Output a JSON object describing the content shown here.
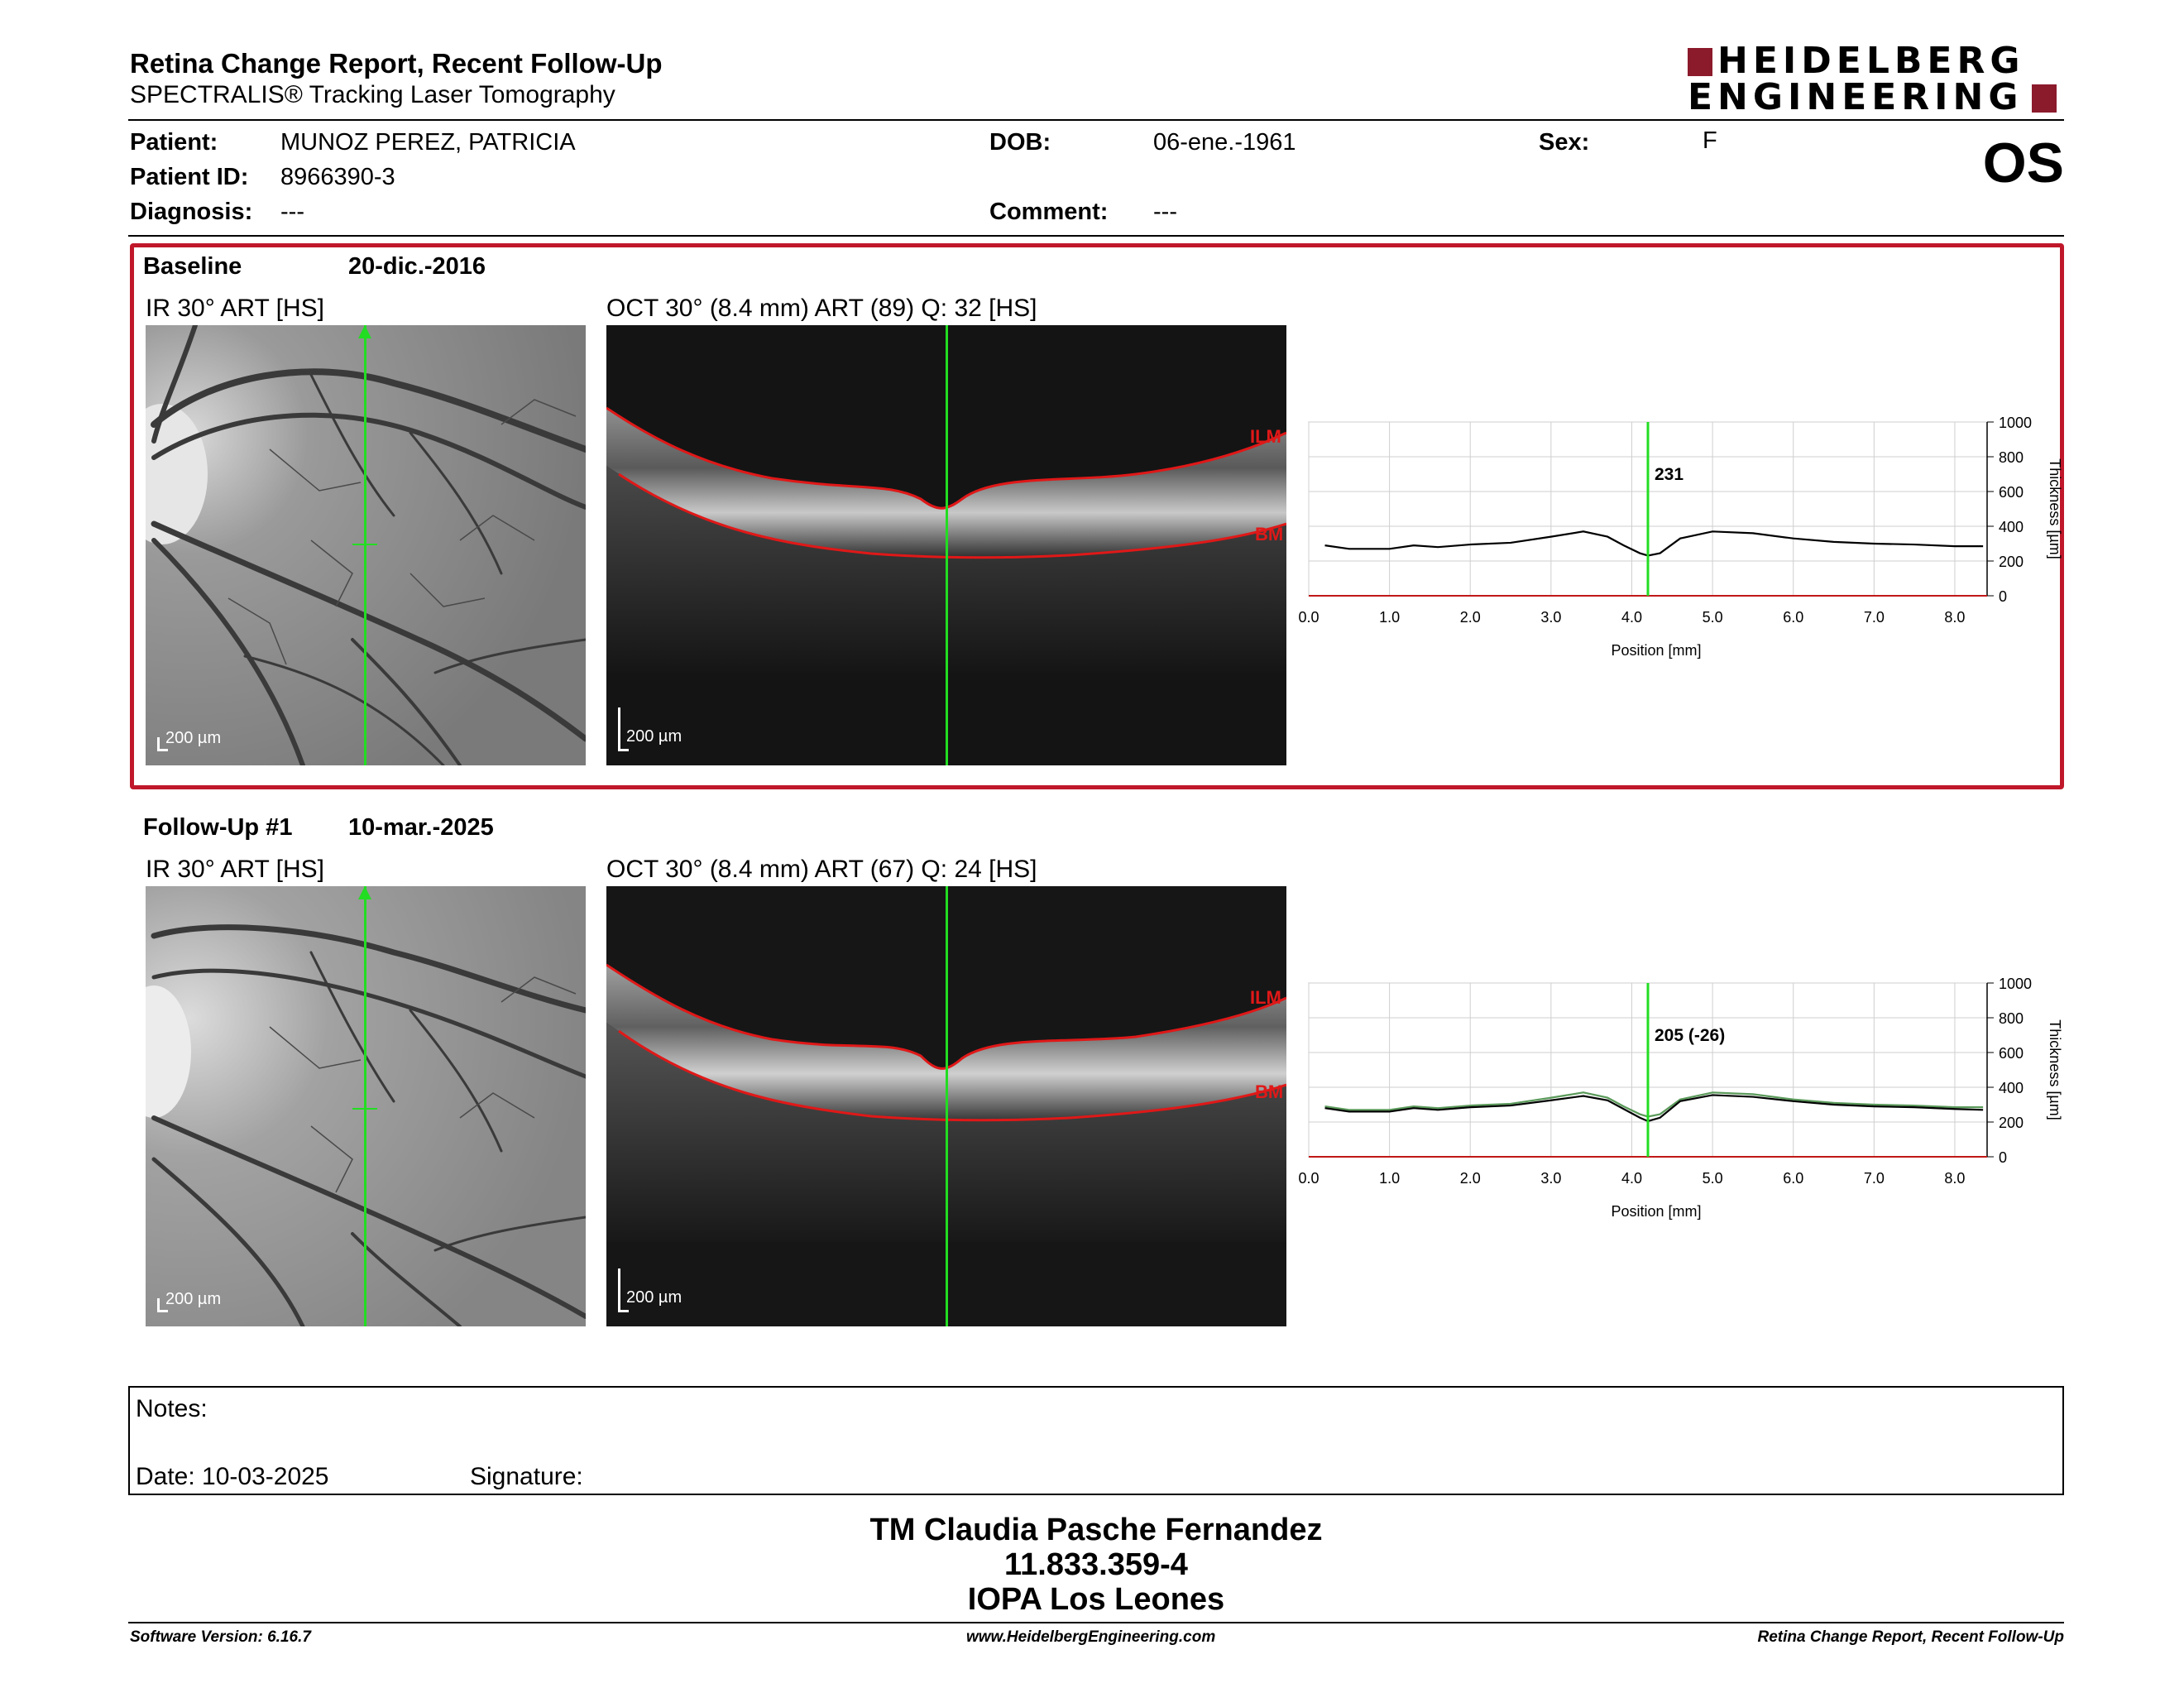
{
  "header": {
    "title": "Retina Change Report, Recent Follow-Up",
    "subtitle": "SPECTRALIS® Tracking Laser Tomography",
    "logo_line1": "HEIDELBERG",
    "logo_line2": "ENGINEERING",
    "eye": "OS"
  },
  "patient": {
    "patient_label": "Patient:",
    "patient_name": "MUNOZ PEREZ, PATRICIA",
    "id_label": "Patient ID:",
    "id_value": "8966390-3",
    "diagnosis_label": "Diagnosis:",
    "diagnosis_value": "---",
    "dob_label": "DOB:",
    "dob_value": "06-ene.-1961",
    "comment_label": "Comment:",
    "comment_value": "---",
    "sex_label": "Sex:",
    "sex_value": "F"
  },
  "baseline": {
    "label": "Baseline",
    "date": "20-dic.-2016",
    "ir_caption": "IR 30° ART [HS]",
    "oct_caption": "OCT 30° (8.4 mm) ART (89) Q: 32 [HS]",
    "scale_ir": "200 µm",
    "scale_oct": "200 µm",
    "ilm_label": "ILM",
    "bm_label": "BM",
    "thickness_readout": "231"
  },
  "followup": {
    "label": "Follow-Up #1",
    "date": "10-mar.-2025",
    "ir_caption": "IR 30° ART [HS]",
    "oct_caption": "OCT 30° (8.4 mm) ART (67) Q: 24 [HS]",
    "scale_ir": "200 µm",
    "scale_oct": "200 µm",
    "ilm_label": "ILM",
    "bm_label": "BM",
    "thickness_readout": "205 (-26)"
  },
  "chart_data": [
    {
      "type": "line",
      "xlabel": "Position [mm]",
      "ylabel": "Thickness [µm]",
      "xlim": [
        0,
        8.4
      ],
      "ylim": [
        0,
        1000
      ],
      "x_ticks": [
        "0.0",
        "1.0",
        "2.0",
        "3.0",
        "4.0",
        "5.0",
        "6.0",
        "7.0",
        "8.0"
      ],
      "y_ticks": [
        "0",
        "200",
        "400",
        "600",
        "800",
        "1000"
      ],
      "grid": true,
      "cursor_x": 4.2,
      "cursor_label": "231",
      "series": [
        {
          "color": "#000000",
          "x": [
            0.2,
            0.5,
            1.0,
            1.3,
            1.6,
            2.0,
            2.5,
            3.0,
            3.4,
            3.7,
            3.9,
            4.1,
            4.2,
            4.35,
            4.6,
            5.0,
            5.5,
            6.0,
            6.5,
            7.0,
            7.5,
            8.0,
            8.35
          ],
          "values": [
            290,
            270,
            270,
            290,
            280,
            295,
            305,
            340,
            370,
            340,
            290,
            245,
            231,
            245,
            330,
            370,
            360,
            330,
            310,
            300,
            295,
            285,
            285
          ]
        }
      ]
    },
    {
      "type": "line",
      "xlabel": "Position [mm]",
      "ylabel": "Thickness [µm]",
      "xlim": [
        0,
        8.4
      ],
      "ylim": [
        0,
        1000
      ],
      "x_ticks": [
        "0.0",
        "1.0",
        "2.0",
        "3.0",
        "4.0",
        "5.0",
        "6.0",
        "7.0",
        "8.0"
      ],
      "y_ticks": [
        "0",
        "200",
        "400",
        "600",
        "800",
        "1000"
      ],
      "grid": true,
      "cursor_x": 4.2,
      "cursor_label": "205 (-26)",
      "series": [
        {
          "color": "#5a9a5a",
          "x": [
            0.2,
            0.5,
            1.0,
            1.3,
            1.6,
            2.0,
            2.5,
            3.0,
            3.4,
            3.7,
            3.9,
            4.1,
            4.2,
            4.35,
            4.6,
            5.0,
            5.5,
            6.0,
            6.5,
            7.0,
            7.5,
            8.0,
            8.35
          ],
          "values": [
            290,
            270,
            270,
            290,
            280,
            295,
            305,
            340,
            370,
            340,
            290,
            245,
            231,
            245,
            330,
            370,
            360,
            330,
            310,
            300,
            295,
            285,
            285
          ]
        },
        {
          "color": "#000000",
          "x": [
            0.2,
            0.5,
            1.0,
            1.3,
            1.6,
            2.0,
            2.5,
            3.0,
            3.4,
            3.7,
            3.9,
            4.1,
            4.2,
            4.35,
            4.6,
            5.0,
            5.5,
            6.0,
            6.5,
            7.0,
            7.5,
            8.0,
            8.35
          ],
          "values": [
            280,
            260,
            260,
            280,
            270,
            285,
            295,
            325,
            350,
            325,
            275,
            225,
            205,
            225,
            320,
            355,
            345,
            320,
            300,
            290,
            285,
            275,
            270
          ]
        }
      ]
    }
  ],
  "notes": {
    "label": "Notes:",
    "date_label": "Date: 10-03-2025",
    "signature_label": "Signature:"
  },
  "signer": {
    "name": "TM Claudia Pasche Fernandez",
    "id": "11.833.359-4",
    "institution": "IOPA Los Leones"
  },
  "footer": {
    "software": "Software Version: 6.16.7",
    "website": "www.HeidelbergEngineering.com",
    "report": "Retina Change Report, Recent Follow-Up"
  },
  "colors": {
    "frame": "#c0182a",
    "logo": "#8b1a2b",
    "cursor": "#22dd22",
    "segmentation": "#e01818"
  }
}
